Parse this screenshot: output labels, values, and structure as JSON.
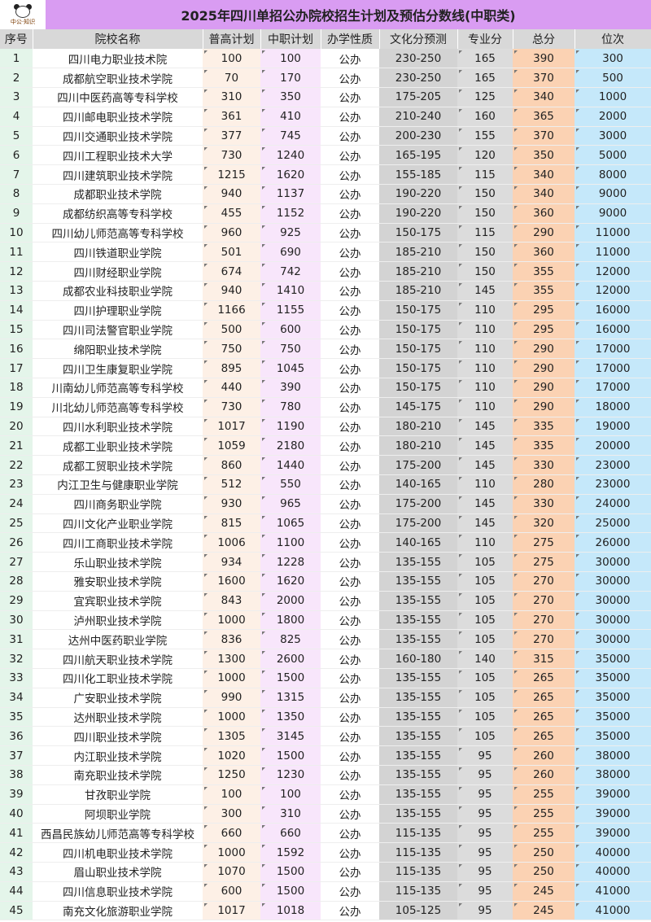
{
  "title": "2025年四川单招公办院校招生计划及预估分数线(中职类)",
  "logo_text": "中公·知识",
  "colors": {
    "title_bg": "#d99cf2",
    "header_bg": "#d8d8d8",
    "total_col": "#fbd2b3",
    "rank_col": "#c5e8fa"
  },
  "columns": [
    "序号",
    "院校名称",
    "普高计划",
    "中职计划",
    "办学性质",
    "文化分预测",
    "专业分",
    "总分",
    "位次"
  ],
  "rows": [
    [
      "1",
      "四川电力职业技术院",
      "100",
      "100",
      "公办",
      "230-250",
      "165",
      "390",
      "300"
    ],
    [
      "2",
      "成都航空职业技术学院",
      "70",
      "170",
      "公办",
      "230-250",
      "165",
      "370",
      "500"
    ],
    [
      "3",
      "四川中医药高等专科学校",
      "310",
      "350",
      "公办",
      "175-205",
      "125",
      "340",
      "1000"
    ],
    [
      "4",
      "四川邮电职业技术学院",
      "361",
      "410",
      "公办",
      "210-240",
      "160",
      "365",
      "2000"
    ],
    [
      "5",
      "四川交通职业技术学院",
      "377",
      "745",
      "公办",
      "200-230",
      "155",
      "370",
      "3000"
    ],
    [
      "6",
      "四川工程职业技术大学",
      "730",
      "1240",
      "公办",
      "165-195",
      "120",
      "350",
      "5000"
    ],
    [
      "7",
      "四川建筑职业技术学院",
      "1215",
      "1620",
      "公办",
      "155-185",
      "115",
      "340",
      "8000"
    ],
    [
      "8",
      "成都职业技术学院",
      "940",
      "1137",
      "公办",
      "190-220",
      "150",
      "340",
      "9000"
    ],
    [
      "9",
      "成都纺织高等专科学校",
      "455",
      "1152",
      "公办",
      "190-220",
      "150",
      "360",
      "9000"
    ],
    [
      "10",
      "四川幼儿师范高等专科学校",
      "960",
      "925",
      "公办",
      "150-175",
      "115",
      "290",
      "11000"
    ],
    [
      "11",
      "四川铁道职业学院",
      "501",
      "690",
      "公办",
      "185-210",
      "150",
      "360",
      "11000"
    ],
    [
      "12",
      "四川财经职业学院",
      "674",
      "742",
      "公办",
      "185-210",
      "150",
      "355",
      "12000"
    ],
    [
      "13",
      "成都农业科技职业学院",
      "940",
      "1410",
      "公办",
      "185-210",
      "145",
      "355",
      "12000"
    ],
    [
      "14",
      "四川护理职业学院",
      "1166",
      "1155",
      "公办",
      "150-175",
      "110",
      "295",
      "16000"
    ],
    [
      "15",
      "四川司法警官职业学院",
      "500",
      "600",
      "公办",
      "150-175",
      "110",
      "295",
      "16000"
    ],
    [
      "16",
      "绵阳职业技术学院",
      "750",
      "750",
      "公办",
      "150-175",
      "110",
      "290",
      "17000"
    ],
    [
      "17",
      "四川卫生康复职业学院",
      "895",
      "1045",
      "公办",
      "150-175",
      "110",
      "290",
      "17000"
    ],
    [
      "18",
      "川南幼儿师范高等专科学校",
      "440",
      "390",
      "公办",
      "150-175",
      "110",
      "290",
      "17000"
    ],
    [
      "19",
      "川北幼儿师范高等专科学校",
      "730",
      "780",
      "公办",
      "145-175",
      "110",
      "290",
      "18000"
    ],
    [
      "20",
      "四川水利职业技术学院",
      "1017",
      "1190",
      "公办",
      "180-210",
      "145",
      "335",
      "19000"
    ],
    [
      "21",
      "成都工业职业技术学院",
      "1059",
      "2180",
      "公办",
      "180-210",
      "145",
      "335",
      "20000"
    ],
    [
      "22",
      "成都工贸职业技术学院",
      "860",
      "1440",
      "公办",
      "175-200",
      "145",
      "330",
      "23000"
    ],
    [
      "23",
      "内江卫生与健康职业学院",
      "512",
      "550",
      "公办",
      "140-165",
      "110",
      "280",
      "23000"
    ],
    [
      "24",
      "四川商务职业学院",
      "930",
      "965",
      "公办",
      "175-200",
      "145",
      "330",
      "24000"
    ],
    [
      "25",
      "四川文化产业职业学院",
      "815",
      "1065",
      "公办",
      "175-200",
      "145",
      "320",
      "25000"
    ],
    [
      "26",
      "四川工商职业技术学院",
      "1006",
      "1100",
      "公办",
      "140-165",
      "110",
      "275",
      "26000"
    ],
    [
      "27",
      "乐山职业技术学院",
      "934",
      "1228",
      "公办",
      "135-155",
      "105",
      "275",
      "30000"
    ],
    [
      "28",
      "雅安职业技术学院",
      "1600",
      "1620",
      "公办",
      "135-155",
      "105",
      "270",
      "30000"
    ],
    [
      "29",
      "宜宾职业技术学院",
      "843",
      "2000",
      "公办",
      "135-155",
      "105",
      "270",
      "30000"
    ],
    [
      "30",
      "泸州职业技术学院",
      "1000",
      "1800",
      "公办",
      "135-155",
      "105",
      "270",
      "30000"
    ],
    [
      "31",
      "达州中医药职业学院",
      "836",
      "825",
      "公办",
      "135-155",
      "105",
      "270",
      "30000"
    ],
    [
      "32",
      "四川航天职业技术学院",
      "1300",
      "2600",
      "公办",
      "160-180",
      "140",
      "315",
      "35000"
    ],
    [
      "33",
      "四川化工职业技术学院",
      "1000",
      "1500",
      "公办",
      "135-155",
      "105",
      "265",
      "35000"
    ],
    [
      "34",
      "广安职业技术学院",
      "990",
      "1315",
      "公办",
      "135-155",
      "105",
      "265",
      "35000"
    ],
    [
      "35",
      "达州职业技术学院",
      "1000",
      "1350",
      "公办",
      "135-155",
      "105",
      "265",
      "35000"
    ],
    [
      "36",
      "四川职业技术学院",
      "1305",
      "3145",
      "公办",
      "135-155",
      "105",
      "265",
      "35000"
    ],
    [
      "37",
      "内江职业技术学院",
      "1020",
      "1500",
      "公办",
      "135-155",
      "95",
      "260",
      "38000"
    ],
    [
      "38",
      "南充职业技术学院",
      "1250",
      "1230",
      "公办",
      "135-155",
      "95",
      "260",
      "38000"
    ],
    [
      "39",
      "甘孜职业学院",
      "100",
      "100",
      "公办",
      "135-155",
      "95",
      "255",
      "39000"
    ],
    [
      "40",
      "阿坝职业学院",
      "300",
      "310",
      "公办",
      "135-155",
      "95",
      "255",
      "39000"
    ],
    [
      "41",
      "西昌民族幼儿师范高等专科学校",
      "660",
      "660",
      "公办",
      "115-135",
      "95",
      "255",
      "39000"
    ],
    [
      "42",
      "四川机电职业技术学院",
      "1000",
      "1592",
      "公办",
      "115-135",
      "95",
      "250",
      "40000"
    ],
    [
      "43",
      "眉山职业技术学院",
      "1070",
      "1500",
      "公办",
      "115-135",
      "95",
      "250",
      "40000"
    ],
    [
      "44",
      "四川信息职业技术学院",
      "600",
      "1500",
      "公办",
      "115-135",
      "95",
      "245",
      "41000"
    ],
    [
      "45",
      "南充文化旅游职业学院",
      "1017",
      "1018",
      "公办",
      "105-125",
      "95",
      "245",
      "41000"
    ]
  ]
}
